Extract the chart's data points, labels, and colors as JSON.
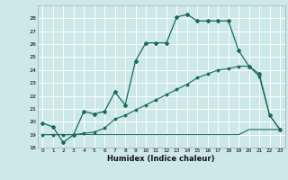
{
  "xlabel": "Humidex (Indice chaleur)",
  "ylabel": "",
  "bg_color": "#cce8e8",
  "grid_color": "#ffffff",
  "line_color": "#1a6b5a",
  "xlim": [
    -0.5,
    23.5
  ],
  "ylim": [
    18,
    29
  ],
  "yticks": [
    18,
    19,
    20,
    21,
    22,
    23,
    24,
    25,
    26,
    27,
    28
  ],
  "xticks": [
    0,
    1,
    2,
    3,
    4,
    5,
    6,
    7,
    8,
    9,
    10,
    11,
    12,
    13,
    14,
    15,
    16,
    17,
    18,
    19,
    20,
    21,
    22,
    23
  ],
  "line1_x": [
    0,
    1,
    2,
    3,
    4,
    5,
    6,
    7,
    8,
    9,
    10,
    11,
    12,
    13,
    14,
    15,
    16,
    17,
    18,
    19,
    20,
    21,
    22,
    23
  ],
  "line1_y": [
    19.9,
    19.6,
    18.4,
    19.0,
    20.8,
    20.6,
    20.8,
    22.3,
    21.3,
    24.7,
    26.1,
    26.1,
    26.1,
    28.1,
    28.3,
    27.8,
    27.8,
    27.8,
    27.8,
    25.5,
    24.3,
    23.7,
    20.5,
    19.4
  ],
  "line2_x": [
    0,
    1,
    2,
    3,
    4,
    5,
    6,
    7,
    8,
    9,
    10,
    11,
    12,
    13,
    14,
    15,
    16,
    17,
    18,
    19,
    20,
    21,
    22,
    23
  ],
  "line2_y": [
    19.0,
    19.0,
    19.0,
    19.0,
    19.0,
    19.0,
    19.0,
    19.0,
    19.0,
    19.0,
    19.0,
    19.0,
    19.0,
    19.0,
    19.0,
    19.0,
    19.0,
    19.0,
    19.0,
    19.0,
    19.4,
    19.4,
    19.4,
    19.4
  ],
  "line3_x": [
    0,
    1,
    2,
    3,
    4,
    5,
    6,
    7,
    8,
    9,
    10,
    11,
    12,
    13,
    14,
    15,
    16,
    17,
    18,
    19,
    20,
    21,
    22,
    23
  ],
  "line3_y": [
    19.0,
    19.0,
    19.0,
    19.0,
    19.1,
    19.2,
    19.5,
    20.2,
    20.5,
    20.9,
    21.3,
    21.7,
    22.1,
    22.5,
    22.9,
    23.4,
    23.7,
    24.0,
    24.1,
    24.3,
    24.3,
    23.5,
    20.5,
    19.4
  ]
}
